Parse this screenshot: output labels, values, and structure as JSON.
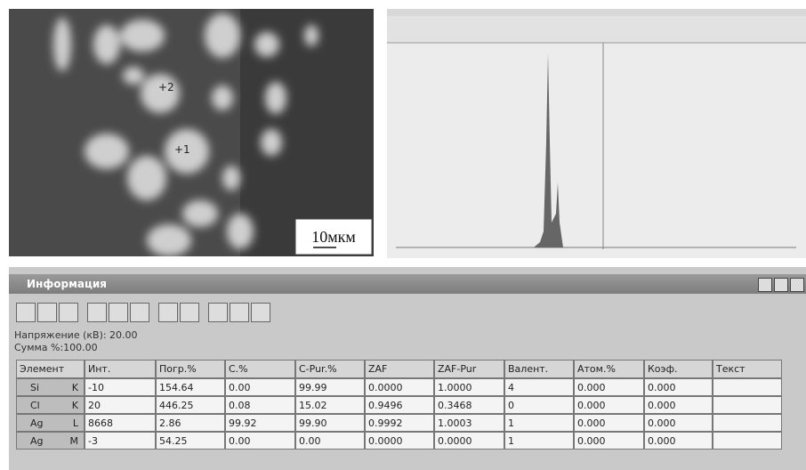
{
  "micrograph": {
    "markers": [
      "+2",
      "+1"
    ],
    "scale_bar": "10мкм"
  },
  "window": {
    "title": "Информация",
    "voltage": "Напряжение (кВ): 20.00",
    "sum": "Сумма %:100.00",
    "table": {
      "headers": [
        "Элемент",
        "Инт.",
        "Погр.%",
        "С.%",
        "C-Pur.%",
        "ZAF",
        "ZAF-Pur",
        "Валент.",
        "Атом.%",
        "Коэф.",
        "Текст"
      ],
      "rows": [
        {
          "element": "Si",
          "line": "K",
          "cells": [
            "-10",
            "154.64",
            "0.00",
            "99.99",
            "0.0000",
            "1.0000",
            "4",
            "0.000",
            "0.000"
          ]
        },
        {
          "element": "Cl",
          "line": "K",
          "cells": [
            "20",
            "446.25",
            "0.08",
            "15.02",
            "0.9496",
            "0.3468",
            "0",
            "0.000",
            "0.000"
          ]
        },
        {
          "element": "Ag",
          "line": "L",
          "cells": [
            "8668",
            "2.86",
            "99.92",
            "99.90",
            "0.9992",
            "1.0003",
            "1",
            "0.000",
            "0.000"
          ]
        },
        {
          "element": "Ag",
          "line": "M",
          "cells": [
            "-3",
            "54.25",
            "0.00",
            "0.00",
            "0.0000",
            "0.0000",
            "1",
            "0.000",
            "0.000"
          ]
        }
      ]
    }
  }
}
